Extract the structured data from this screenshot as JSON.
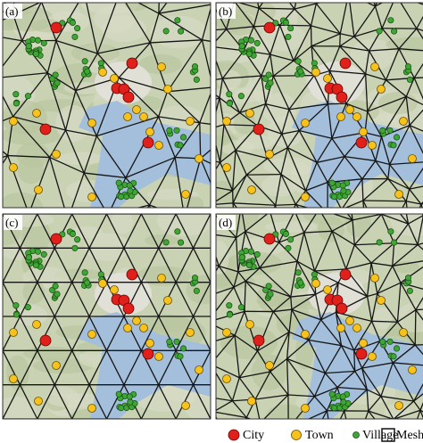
{
  "panels": [
    {
      "label": "(a)"
    },
    {
      "label": "(b)"
    },
    {
      "label": "(c)"
    },
    {
      "label": "(d)"
    }
  ],
  "legend": {
    "city": "City",
    "town": "Town",
    "village": "Village",
    "mesh": "Mesh"
  }
}
